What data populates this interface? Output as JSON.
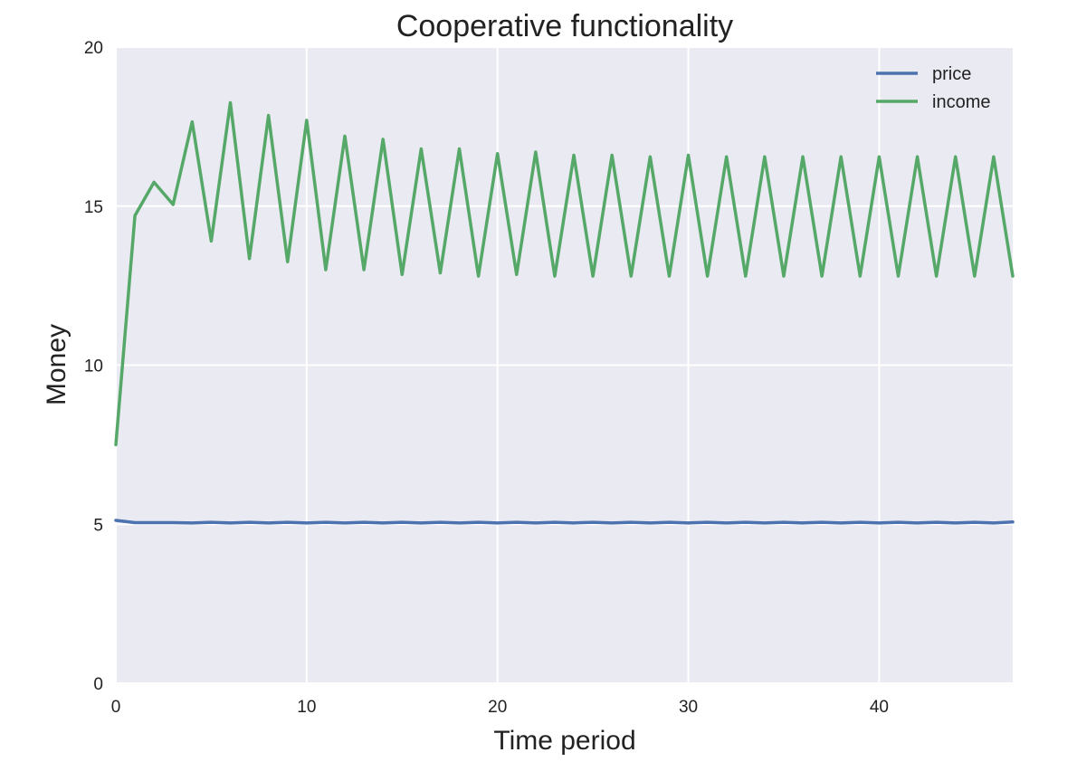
{
  "chart_data": {
    "type": "line",
    "title": "Cooperative functionality",
    "xlabel": "Time period",
    "ylabel": "Money",
    "xlim": [
      0,
      47
    ],
    "ylim": [
      0,
      20
    ],
    "xticks": [
      0,
      10,
      20,
      30,
      40
    ],
    "yticks": [
      0,
      5,
      10,
      15,
      20
    ],
    "grid": true,
    "legend_position": "top-right",
    "x": [
      0,
      1,
      2,
      3,
      4,
      5,
      6,
      7,
      8,
      9,
      10,
      11,
      12,
      13,
      14,
      15,
      16,
      17,
      18,
      19,
      20,
      21,
      22,
      23,
      24,
      25,
      26,
      27,
      28,
      29,
      30,
      31,
      32,
      33,
      34,
      35,
      36,
      37,
      38,
      39,
      40,
      41,
      42,
      43,
      44,
      45,
      46,
      47
    ],
    "series": [
      {
        "name": "price",
        "color": "#4c72b0",
        "values": [
          5.12,
          5.05,
          5.05,
          5.05,
          5.04,
          5.06,
          5.04,
          5.06,
          5.04,
          5.06,
          5.04,
          5.06,
          5.04,
          5.06,
          5.04,
          5.06,
          5.04,
          5.06,
          5.04,
          5.06,
          5.04,
          5.06,
          5.04,
          5.06,
          5.04,
          5.06,
          5.04,
          5.06,
          5.04,
          5.06,
          5.04,
          5.06,
          5.04,
          5.06,
          5.04,
          5.06,
          5.04,
          5.06,
          5.04,
          5.06,
          5.04,
          5.06,
          5.04,
          5.06,
          5.04,
          5.06,
          5.04,
          5.07
        ]
      },
      {
        "name": "income",
        "color": "#55a868",
        "values": [
          7.5,
          14.7,
          15.75,
          15.05,
          17.65,
          13.9,
          18.25,
          13.35,
          17.85,
          13.25,
          17.7,
          13.0,
          17.2,
          13.0,
          17.1,
          12.85,
          16.8,
          12.9,
          16.8,
          12.8,
          16.65,
          12.85,
          16.7,
          12.8,
          16.6,
          12.8,
          16.6,
          12.8,
          16.55,
          12.8,
          16.6,
          12.8,
          16.55,
          12.8,
          16.55,
          12.8,
          16.55,
          12.8,
          16.55,
          12.8,
          16.55,
          12.8,
          16.55,
          12.8,
          16.55,
          12.8,
          16.55,
          12.8
        ]
      }
    ]
  }
}
